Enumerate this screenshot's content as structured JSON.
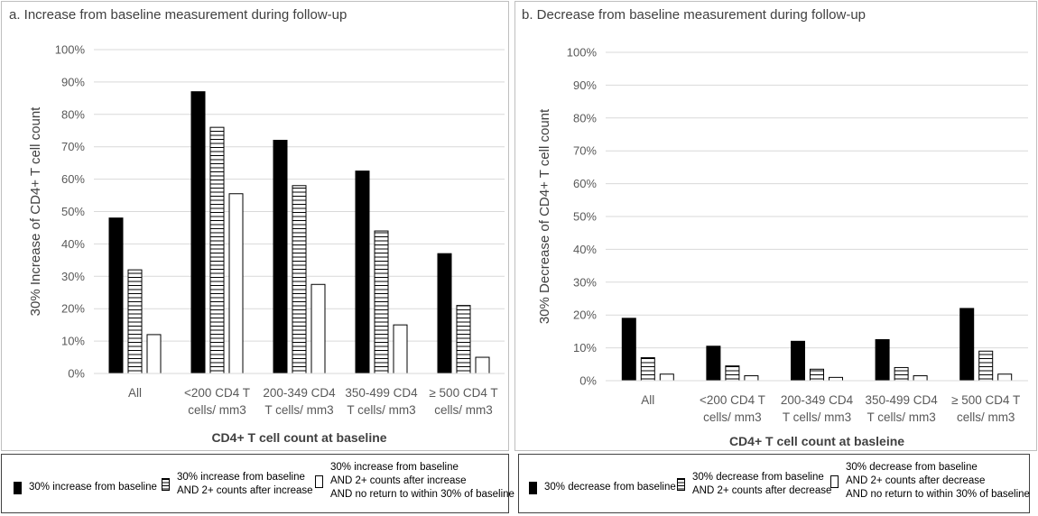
{
  "chart_data": [
    {
      "type": "bar",
      "title": "a. Increase from baseline measurement during follow-up",
      "xlabel": "CD4+ T cell count at baseline",
      "ylabel": "30% Increase of CD4+ T cell count",
      "ylim": [
        0,
        100
      ],
      "yticks": [
        "0%",
        "10%",
        "20%",
        "30%",
        "40%",
        "50%",
        "60%",
        "70%",
        "80%",
        "90%",
        "100%"
      ],
      "grid": true,
      "categories": [
        [
          "All"
        ],
        [
          "<200 CD4 T",
          "cells/ mm3"
        ],
        [
          "200-349 CD4",
          "T cells/ mm3"
        ],
        [
          "350-499 CD4",
          "T cells/ mm3"
        ],
        [
          "≥ 500 CD4 T",
          "cells/ mm3"
        ]
      ],
      "series": [
        {
          "name": "30% increase from baseline",
          "style": "solid",
          "values": [
            48,
            87,
            72,
            62.5,
            37
          ]
        },
        {
          "name": "30% increase from baseline AND 2+ counts after increase",
          "style": "hatch",
          "values": [
            32,
            76,
            58,
            44,
            21
          ]
        },
        {
          "name": "30% increase from baseline AND 2+ counts after increase AND no return to within 30% of baseline",
          "style": "open",
          "values": [
            12,
            55.5,
            27.5,
            15,
            5
          ]
        }
      ],
      "legend_position": "bottom",
      "legend": [
        {
          "lines": [
            "30% increase from baseline"
          ],
          "style": "solid"
        },
        {
          "lines": [
            "30% increase from baseline",
            "AND 2+ counts after increase"
          ],
          "style": "hatch"
        },
        {
          "lines": [
            "30% increase from baseline",
            "AND 2+ counts after increase",
            "AND no return to within 30% of baseline"
          ],
          "style": "open"
        }
      ]
    },
    {
      "type": "bar",
      "title": "b. Decrease from baseline measurement during follow-up",
      "xlabel": "CD4+ T cell count at basleine",
      "ylabel": "30% Decrease of CD4+ T cell count",
      "ylim": [
        0,
        100
      ],
      "yticks": [
        "0%",
        "10%",
        "20%",
        "30%",
        "40%",
        "50%",
        "60%",
        "70%",
        "80%",
        "90%",
        "100%"
      ],
      "grid": true,
      "categories": [
        [
          "All"
        ],
        [
          "<200 CD4 T",
          "cells/ mm3"
        ],
        [
          "200-349 CD4",
          "T cells/ mm3"
        ],
        [
          "350-499 CD4",
          "T cells/ mm3"
        ],
        [
          "≥ 500 CD4 T",
          "cells/ mm3"
        ]
      ],
      "series": [
        {
          "name": "30% decrease from baseline",
          "style": "solid",
          "values": [
            19,
            10.5,
            12,
            12.5,
            22
          ]
        },
        {
          "name": "30% decrease from baseline AND 2+ counts after decrease",
          "style": "hatch",
          "values": [
            7,
            4.5,
            3.5,
            4,
            9
          ]
        },
        {
          "name": "30% decrease from baseline AND 2+ counts after decrease AND no return to within 30% of baseline",
          "style": "open",
          "values": [
            2,
            1.5,
            1,
            1.5,
            2
          ]
        }
      ],
      "legend_position": "bottom",
      "legend": [
        {
          "lines": [
            "30% decrease from baseline"
          ],
          "style": "solid"
        },
        {
          "lines": [
            "30% decrease from baseline",
            "AND 2+ counts after decrease"
          ],
          "style": "hatch"
        },
        {
          "lines": [
            "30% decrease from baseline",
            "AND 2+ counts after decrease",
            "AND no return to within 30% of baseline"
          ],
          "style": "open"
        }
      ]
    }
  ]
}
